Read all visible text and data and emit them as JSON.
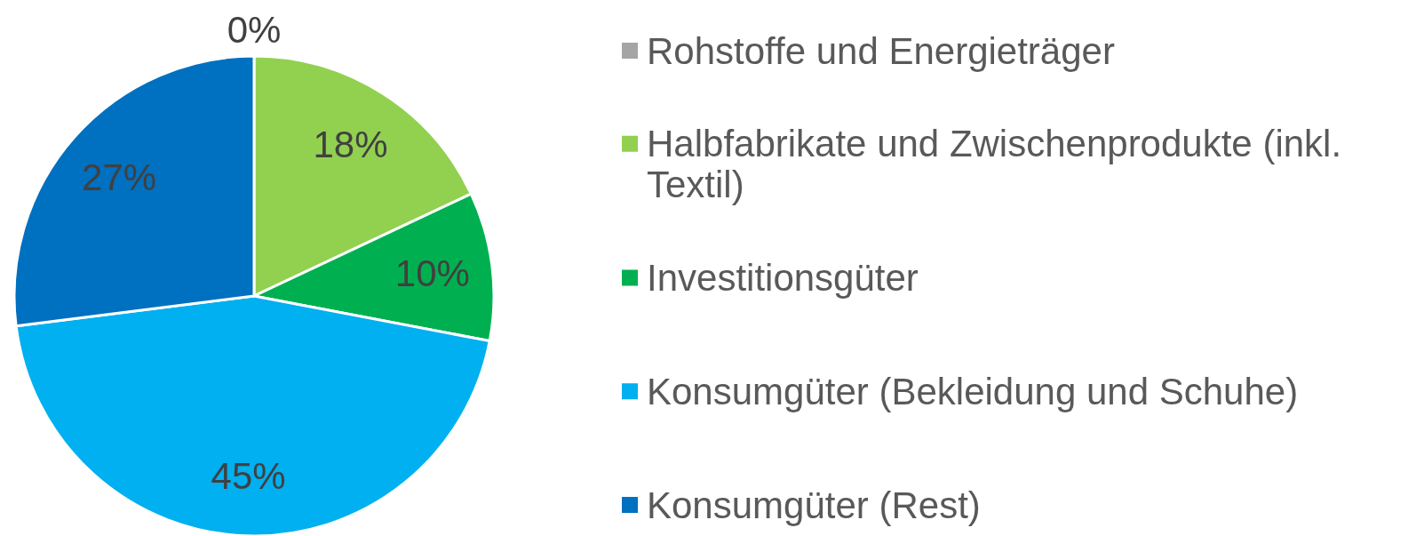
{
  "chart_data": {
    "type": "pie",
    "categories": [
      "Rohstoffe und Energieträger",
      "Halbfabrikate und Zwischenprodukte (inkl. Textil)",
      "Investitionsgüter",
      "Konsumgüter (Bekleidung und Schuhe)",
      "Konsumgüter (Rest)"
    ],
    "values": [
      0,
      18,
      10,
      45,
      27
    ],
    "colors": [
      "#a5a5a5",
      "#92d050",
      "#00b050",
      "#00b0f0",
      "#0070c0"
    ],
    "value_labels": [
      "0%",
      "18%",
      "10%",
      "45%",
      "27%"
    ],
    "legend": "right"
  }
}
